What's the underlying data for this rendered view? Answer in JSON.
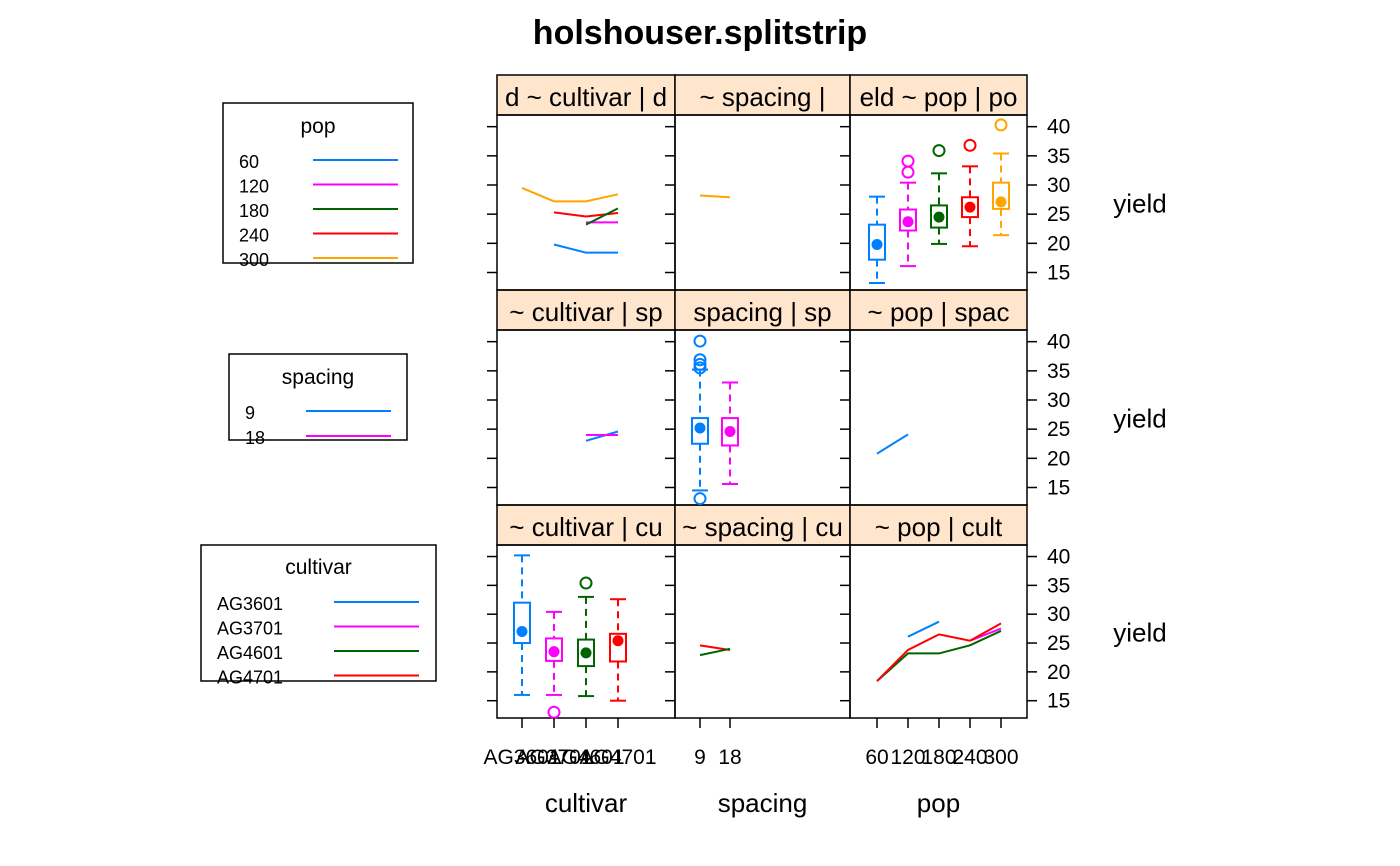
{
  "chart_data": {
    "type": "trellis",
    "title": "holshouser.splitstrip",
    "ylabel": "yield",
    "ylim": [
      12,
      42
    ],
    "yticks": [
      15,
      20,
      25,
      30,
      35,
      40
    ],
    "colors": {
      "blue": "#0080ff",
      "magenta": "#ff00ff",
      "darkgreen": "#006400",
      "red": "#ff0000",
      "orange": "#ffa500",
      "strip": "#ffe5cc"
    },
    "columns": [
      {
        "key": "cultivar",
        "xlabel": "cultivar",
        "ticks": [
          "AG3601",
          "AG3701",
          "AG4601",
          "AG4701"
        ]
      },
      {
        "key": "spacing",
        "xlabel": "spacing",
        "ticks": [
          "9",
          "18"
        ]
      },
      {
        "key": "pop",
        "xlabel": "pop",
        "ticks": [
          "60",
          "120",
          "180",
          "240",
          "300"
        ]
      }
    ],
    "strips": [
      [
        "d ~ cultivar | d",
        "~ spacing | ",
        "eld ~ pop | po"
      ],
      [
        "~ cultivar | sp",
        "spacing | sp",
        "~ pop | spac"
      ],
      [
        "~ cultivar | cu",
        "~ spacing | cu",
        "~ pop | cult"
      ]
    ],
    "legends": [
      {
        "title": "pop",
        "items": [
          "60",
          "120",
          "180",
          "240",
          "300"
        ],
        "colors": [
          "#0080ff",
          "#ff00ff",
          "#006400",
          "#ff0000",
          "#ffa500"
        ]
      },
      {
        "title": "spacing",
        "items": [
          "9",
          "18"
        ],
        "colors": [
          "#0080ff",
          "#ff00ff"
        ]
      },
      {
        "title": "cultivar",
        "items": [
          "AG3601",
          "AG3701",
          "AG4601",
          "AG4701"
        ],
        "colors": [
          "#0080ff",
          "#ff00ff",
          "#006400",
          "#ff0000"
        ]
      }
    ],
    "panels": [
      {
        "row": 0,
        "col": 0,
        "kind": "lines",
        "series": [
          {
            "color": "#ffa500",
            "x": [
              1,
              2,
              3,
              4
            ],
            "y": [
              29.5,
              27.2,
              27.2,
              28.4
            ]
          },
          {
            "color": "#ff0000",
            "x": [
              2,
              3,
              4
            ],
            "y": [
              25.3,
              24.6,
              25.2
            ]
          },
          {
            "color": "#ff00ff",
            "x": [
              3,
              4
            ],
            "y": [
              23.6,
              23.6
            ]
          },
          {
            "color": "#006400",
            "x": [
              3,
              4
            ],
            "y": [
              23.2,
              26.0
            ]
          },
          {
            "color": "#0080ff",
            "x": [
              2,
              3,
              4
            ],
            "y": [
              19.8,
              18.4,
              18.4
            ]
          }
        ]
      },
      {
        "row": 0,
        "col": 1,
        "kind": "lines",
        "series": [
          {
            "color": "#ffa500",
            "x": [
              1,
              2
            ],
            "y": [
              28.2,
              27.9
            ]
          }
        ]
      },
      {
        "row": 0,
        "col": 2,
        "kind": "boxes",
        "boxes": [
          {
            "x": 1,
            "color": "#0080ff",
            "q1": 17.2,
            "med": 19.8,
            "q3": 23.2,
            "lo": 13.2,
            "hi": 28.0,
            "out": []
          },
          {
            "x": 2,
            "color": "#ff00ff",
            "q1": 22.2,
            "med": 23.7,
            "q3": 25.8,
            "lo": 16.1,
            "hi": 30.4,
            "out": [
              32.2,
              34.1
            ]
          },
          {
            "x": 3,
            "color": "#006400",
            "q1": 22.7,
            "med": 24.5,
            "q3": 26.5,
            "lo": 19.9,
            "hi": 32.0,
            "out": [
              35.9
            ]
          },
          {
            "x": 4,
            "color": "#ff0000",
            "q1": 24.5,
            "med": 26.2,
            "q3": 27.9,
            "lo": 19.5,
            "hi": 33.2,
            "out": [
              36.8
            ]
          },
          {
            "x": 5,
            "color": "#ffa500",
            "q1": 25.9,
            "med": 27.1,
            "q3": 30.4,
            "lo": 21.4,
            "hi": 35.4,
            "out": [
              40.3
            ]
          }
        ]
      },
      {
        "row": 1,
        "col": 0,
        "kind": "lines",
        "series": [
          {
            "color": "#0080ff",
            "x": [
              3,
              4
            ],
            "y": [
              23.0,
              24.6
            ]
          },
          {
            "color": "#ff00ff",
            "x": [
              3,
              4
            ],
            "y": [
              24.0,
              24.0
            ]
          }
        ]
      },
      {
        "row": 1,
        "col": 1,
        "kind": "boxes",
        "boxes": [
          {
            "x": 1,
            "color": "#0080ff",
            "q1": 22.5,
            "med": 25.2,
            "q3": 26.9,
            "lo": 14.5,
            "hi": 35.2,
            "out": [
              13.1,
              35.5,
              36.1,
              36.9,
              40.1
            ]
          },
          {
            "x": 2,
            "color": "#ff00ff",
            "q1": 22.2,
            "med": 24.6,
            "q3": 26.9,
            "lo": 15.6,
            "hi": 33.0,
            "out": []
          }
        ]
      },
      {
        "row": 1,
        "col": 2,
        "kind": "lines",
        "series": [
          {
            "color": "#0080ff",
            "x": [
              1,
              2
            ],
            "y": [
              20.8,
              24.1
            ]
          }
        ]
      },
      {
        "row": 2,
        "col": 0,
        "kind": "boxes",
        "boxes": [
          {
            "x": 1,
            "color": "#0080ff",
            "q1": 25.0,
            "med": 27.0,
            "q3": 32.0,
            "lo": 16.0,
            "hi": 40.2,
            "out": []
          },
          {
            "x": 2,
            "color": "#ff00ff",
            "q1": 21.9,
            "med": 23.5,
            "q3": 25.8,
            "lo": 16.0,
            "hi": 30.4,
            "out": [
              13.0
            ]
          },
          {
            "x": 3,
            "color": "#006400",
            "q1": 21.0,
            "med": 23.3,
            "q3": 25.6,
            "lo": 15.8,
            "hi": 33.0,
            "out": [
              35.4
            ]
          },
          {
            "x": 4,
            "color": "#ff0000",
            "q1": 21.8,
            "med": 25.4,
            "q3": 26.6,
            "lo": 15.0,
            "hi": 32.6,
            "out": []
          }
        ]
      },
      {
        "row": 2,
        "col": 1,
        "kind": "lines",
        "series": [
          {
            "color": "#ff0000",
            "x": [
              1,
              2
            ],
            "y": [
              24.6,
              23.8
            ]
          },
          {
            "color": "#006400",
            "x": [
              1,
              2
            ],
            "y": [
              22.9,
              24.0
            ]
          }
        ]
      },
      {
        "row": 2,
        "col": 2,
        "kind": "lines",
        "series": [
          {
            "color": "#0080ff",
            "x": [
              2,
              3
            ],
            "y": [
              26.1,
              28.7
            ]
          },
          {
            "color": "#006400",
            "x": [
              1,
              2,
              3,
              4,
              5
            ],
            "y": [
              18.4,
              23.2,
              23.2,
              24.6,
              27.1
            ]
          },
          {
            "color": "#ff00ff",
            "x": [
              4,
              5
            ],
            "y": [
              25.4,
              27.5
            ]
          },
          {
            "color": "#ff0000",
            "x": [
              1,
              2,
              3,
              4,
              5
            ],
            "y": [
              18.4,
              23.8,
              26.5,
              25.4,
              28.4
            ]
          }
        ]
      }
    ]
  }
}
